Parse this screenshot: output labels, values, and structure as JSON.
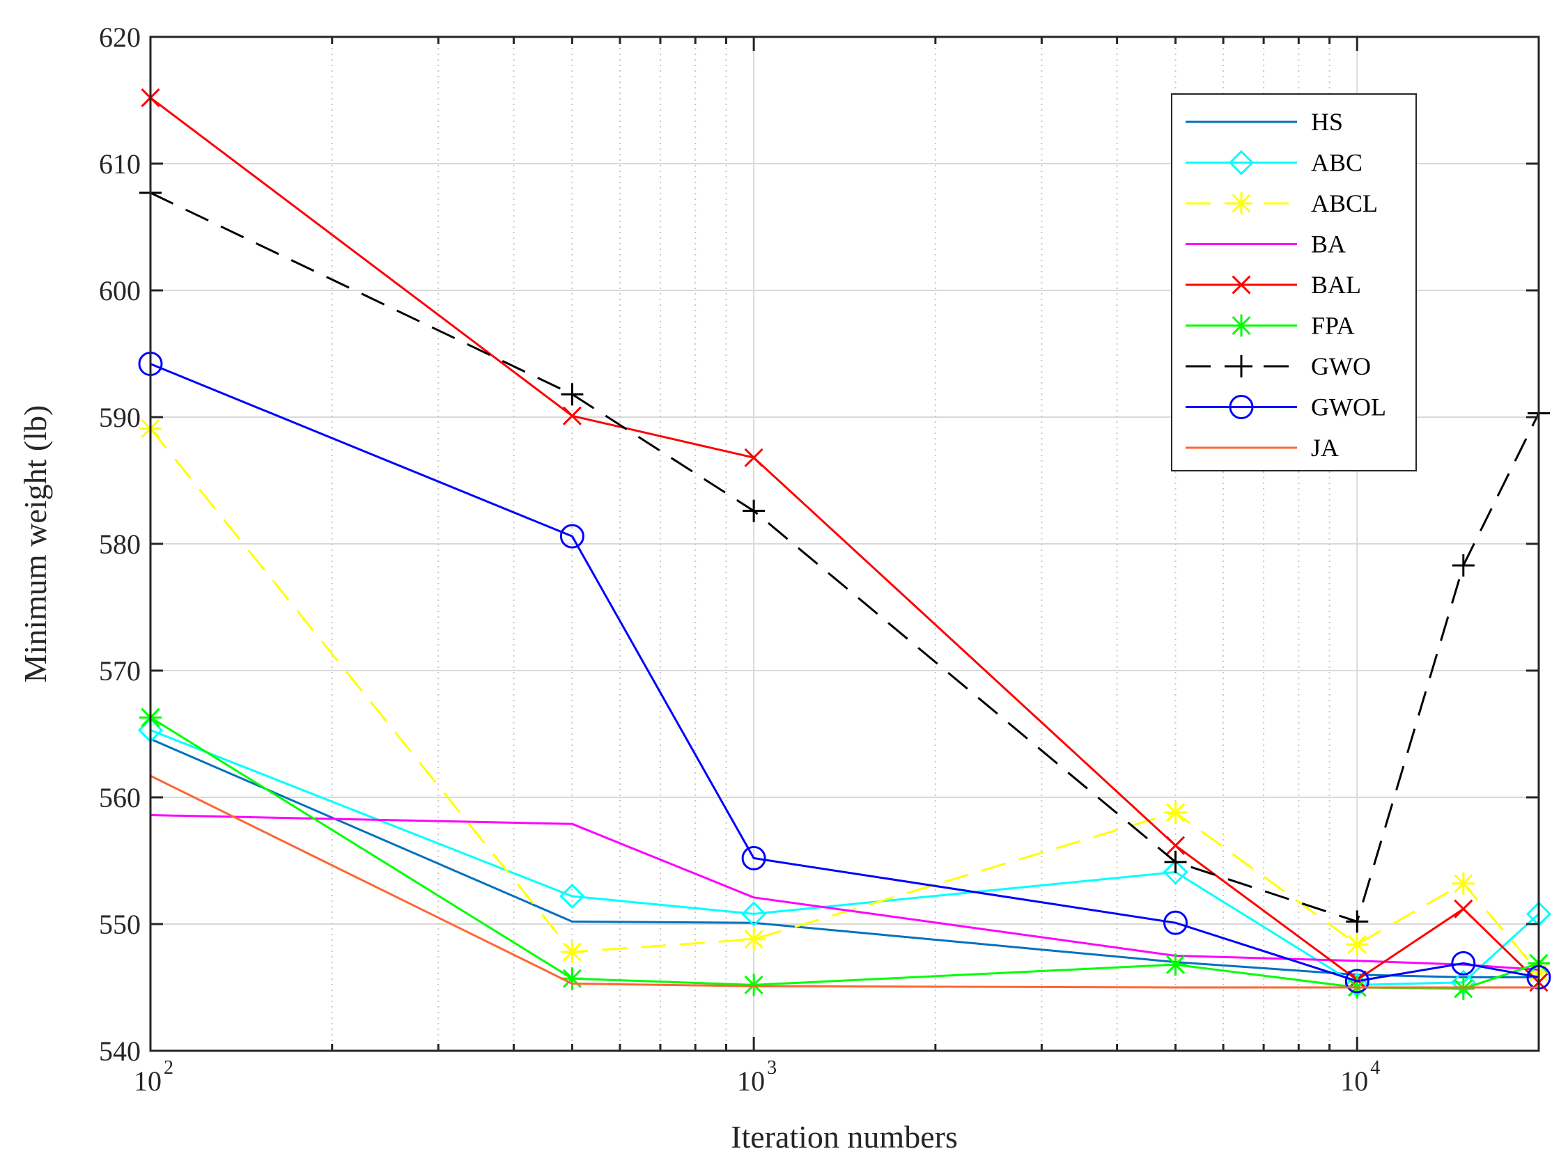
{
  "chart_data": {
    "type": "line",
    "xscale": "log",
    "title": "",
    "xlabel": "Iteration numbers",
    "ylabel": "Minimum weight (lb)",
    "xlim": [
      100,
      20000
    ],
    "ylim": [
      540,
      620
    ],
    "x": [
      100,
      500,
      1000,
      5000,
      10000,
      15000,
      20000
    ],
    "yticks": [
      540,
      550,
      560,
      570,
      580,
      590,
      600,
      610,
      620
    ],
    "xticks": [
      {
        "value": 100,
        "base": "10",
        "exp": "2"
      },
      {
        "value": 1000,
        "base": "10",
        "exp": "3"
      },
      {
        "value": 10000,
        "base": "10",
        "exp": "4"
      }
    ],
    "grid": true,
    "legend_position": "top-right",
    "series": [
      {
        "name": "HS",
        "color": "#0072BD",
        "dash": "solid",
        "marker": "none",
        "values": [
          564.6,
          550.2,
          550.1,
          547.0,
          546.0,
          545.8,
          545.8
        ]
      },
      {
        "name": "ABC",
        "color": "#00FFFF",
        "dash": "solid",
        "marker": "diamond",
        "values": [
          565.3,
          552.2,
          550.8,
          554.1,
          545.2,
          545.4,
          550.8
        ]
      },
      {
        "name": "ABCL",
        "color": "#FFFF00",
        "dash": "dashed",
        "marker": "star",
        "values": [
          589.1,
          547.8,
          548.8,
          558.8,
          548.4,
          553.2,
          546.2
        ]
      },
      {
        "name": "BA",
        "color": "#FF00FF",
        "dash": "solid",
        "marker": "none",
        "values": [
          558.6,
          557.9,
          552.1,
          547.5,
          547.1,
          546.8,
          546.4
        ]
      },
      {
        "name": "BAL",
        "color": "#FF0000",
        "dash": "solid",
        "marker": "x",
        "values": [
          615.2,
          590.1,
          586.8,
          556.2,
          545.6,
          551.2,
          545.4
        ]
      },
      {
        "name": "FPA",
        "color": "#00FF00",
        "dash": "solid",
        "marker": "star",
        "values": [
          566.3,
          545.7,
          545.2,
          546.8,
          545.0,
          544.9,
          546.9
        ]
      },
      {
        "name": "GWO",
        "color": "#000000",
        "dash": "dashed",
        "marker": "plus",
        "values": [
          607.7,
          591.8,
          582.6,
          554.9,
          550.2,
          578.3,
          590.3
        ]
      },
      {
        "name": "GWOL",
        "color": "#0000FF",
        "dash": "solid",
        "marker": "circle",
        "values": [
          594.2,
          580.6,
          555.2,
          550.1,
          545.5,
          546.9,
          545.8
        ]
      },
      {
        "name": "JA",
        "color": "#FF6633",
        "dash": "solid",
        "marker": "none",
        "values": [
          561.7,
          545.3,
          545.1,
          545.0,
          545.0,
          545.0,
          545.0
        ]
      }
    ]
  }
}
